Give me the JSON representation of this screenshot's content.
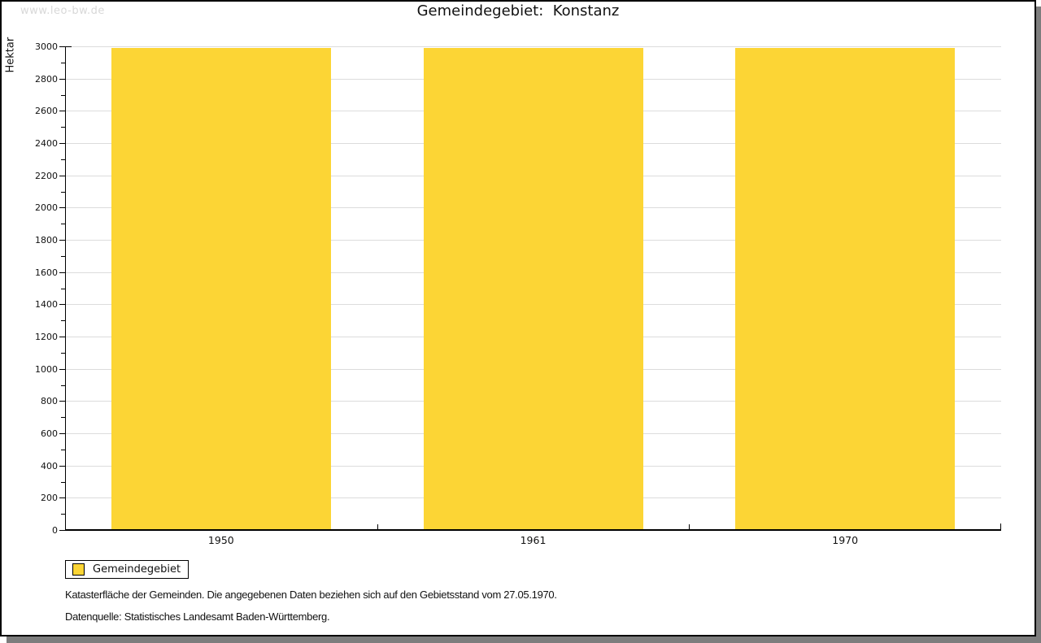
{
  "watermark": "www.leo-bw.de",
  "title": "Gemeindegebiet:  Konstanz",
  "chart_data": {
    "type": "bar",
    "title": "Gemeindegebiet: Konstanz",
    "categories": [
      "1950",
      "1961",
      "1970"
    ],
    "series": [
      {
        "name": "Gemeindegebiet",
        "values": [
          2990,
          2990,
          2990
        ]
      }
    ],
    "xlabel": "",
    "ylabel": "Hektar",
    "ylim": [
      0,
      3000
    ],
    "ytick_step": 200,
    "ytick_minor_step": 100,
    "grid": "horizontal-major",
    "bar_color": "#FCD535",
    "legend_position": "bottom-left-outside"
  },
  "legend": {
    "label": "Gemeindegebiet",
    "swatch_color": "#FCD535"
  },
  "footer": {
    "line1": "Katasterfläche der Gemeinden. Die angegebenen Daten beziehen sich auf den Gebietsstand vom 27.05.1970.",
    "line2": "Datenquelle: Statistisches Landesamt Baden-Württemberg."
  },
  "colors": {
    "bar": "#FCD535",
    "grid": "#DCDCDC",
    "axis": "#000000",
    "frame_border": "#000000",
    "frame_shadow": "#7D7D7D",
    "watermark": "#D8D8D8",
    "background": "#FFFFFF"
  }
}
